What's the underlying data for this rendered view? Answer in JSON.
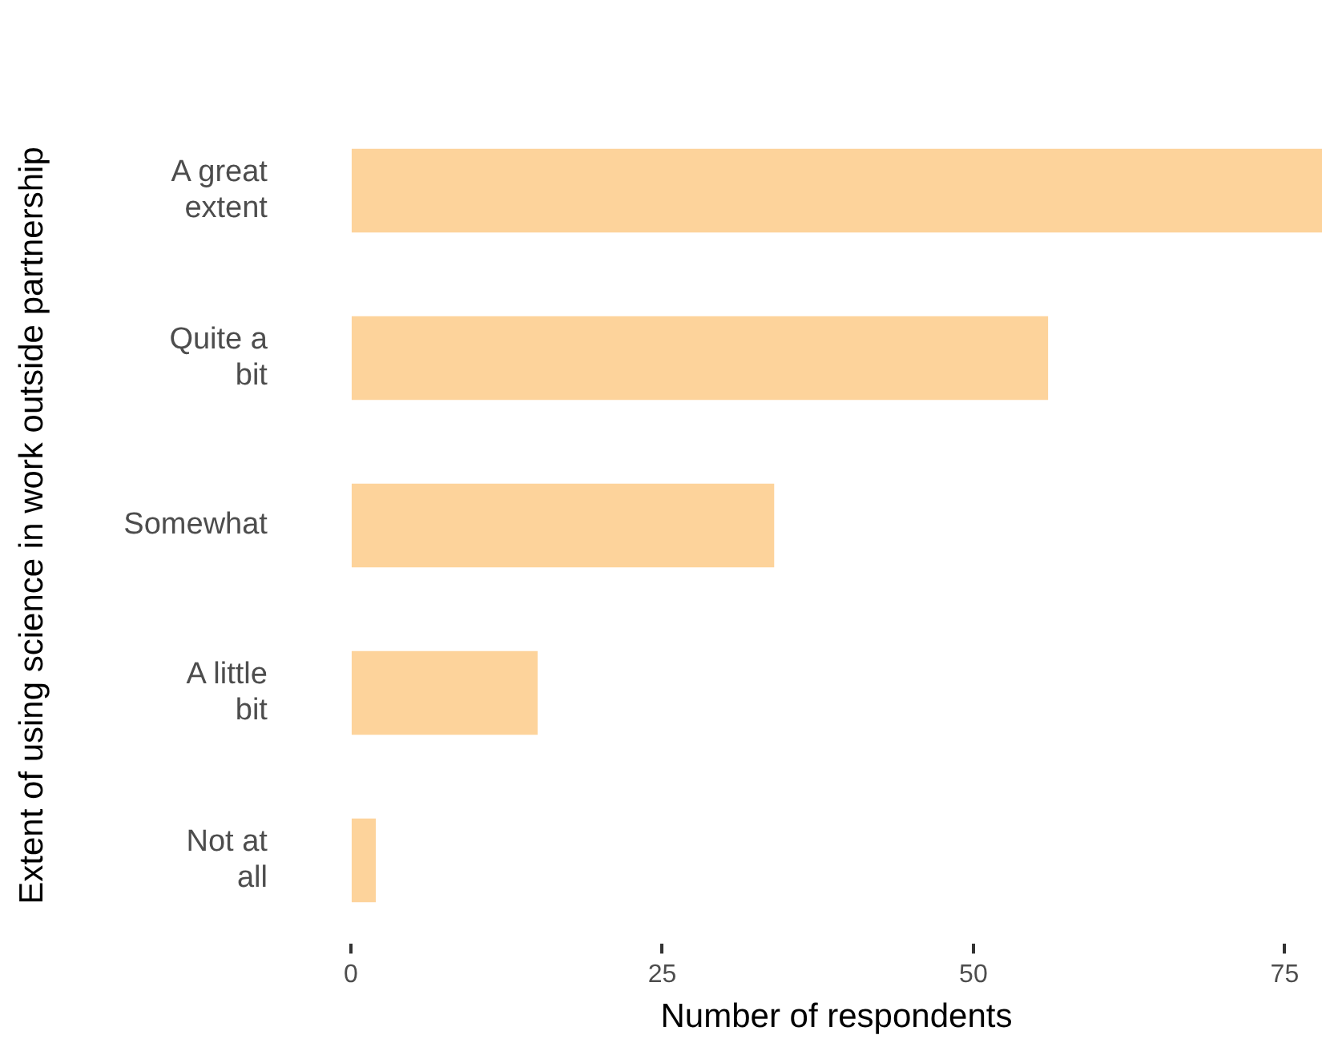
{
  "chart_data": {
    "type": "bar",
    "orientation": "horizontal",
    "xlabel": "Number of respondents",
    "ylabel": "Extent of using science in work outside partnership",
    "categories": [
      "A great extent",
      "Quite a bit",
      "Somewhat",
      "A little bit",
      "Not at all"
    ],
    "values": [
      78,
      56,
      34,
      15,
      2
    ],
    "color": "#fdd39b",
    "xlim": [
      0,
      78
    ],
    "xticks": [
      0,
      25,
      50,
      75
    ],
    "grid": false,
    "legend": false
  }
}
